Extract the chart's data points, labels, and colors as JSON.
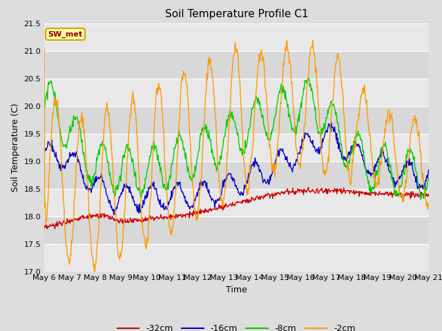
{
  "title": "Soil Temperature Profile C1",
  "xlabel": "Time",
  "ylabel": "Soil Temperature (C)",
  "ylim": [
    17.0,
    21.5
  ],
  "yticks": [
    17.0,
    17.5,
    18.0,
    18.5,
    19.0,
    19.5,
    20.0,
    20.5,
    21.0,
    21.5
  ],
  "x_tick_labels": [
    "May 6",
    "May 7",
    "May 8",
    "May 9",
    "May 10",
    "May 11",
    "May 12",
    "May 13",
    "May 14",
    "May 15",
    "May 16",
    "May 17",
    "May 18",
    "May 19",
    "May 20",
    "May 21"
  ],
  "colors": {
    "-32cm": "#cc0000",
    "-16cm": "#0000cc",
    "-8cm": "#00cc00",
    "-2cm": "#ff9900"
  },
  "annotation_text": "SW_met",
  "annotation_bg": "#ffffaa",
  "annotation_border": "#ccaa00",
  "annotation_text_color": "#880000",
  "background_color": "#dddddd",
  "band_colors": [
    "#e8e8e8",
    "#d8d8d8"
  ],
  "grid_color": "#ffffff",
  "title_fontsize": 11,
  "axis_label_fontsize": 9,
  "tick_fontsize": 8
}
